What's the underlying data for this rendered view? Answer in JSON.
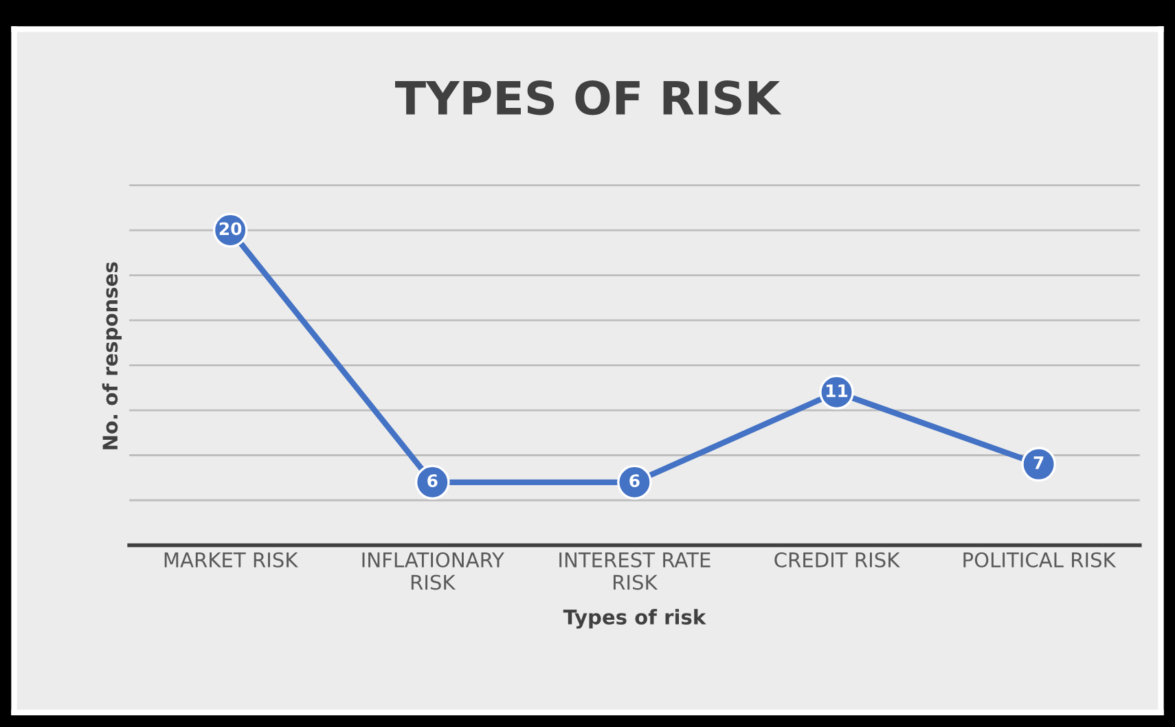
{
  "chart_data": {
    "type": "line",
    "title": "TYPES OF RISK",
    "xlabel": "Types of risk",
    "ylabel": "No. of responses",
    "categories": [
      "MARKET RISK",
      "INFLATIONARY\nRISK",
      "INTEREST RATE\nRISK",
      "CREDIT RISK",
      "POLITICAL RISK"
    ],
    "series": [
      {
        "color": "#4472c4",
        "values": [
          20,
          6,
          6,
          11,
          7
        ]
      }
    ],
    "tick_labels": "x",
    "grid": "y",
    "marker": "circle",
    "line_style": "solid",
    "data_labels": true,
    "legend": false
  }
}
